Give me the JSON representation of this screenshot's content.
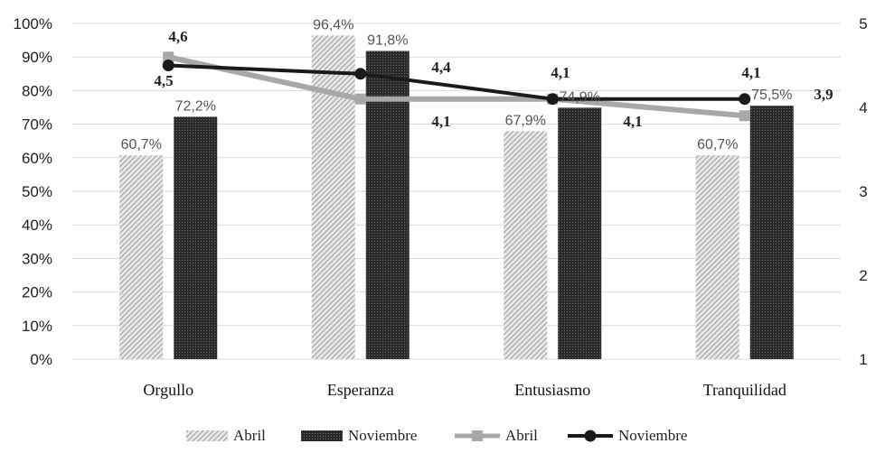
{
  "chart_data": {
    "type": "bar",
    "categories": [
      "Orgullo",
      "Esperanza",
      "Entusiasmo",
      "Tranquilidad"
    ],
    "bar_series": [
      {
        "name": "Abril",
        "values": [
          60.7,
          96.4,
          67.9,
          60.7
        ],
        "labels": [
          "60,7%",
          "96,4%",
          "67,9%",
          "60,7%"
        ],
        "color": "#cfcfcf",
        "pattern": "diagonal-hatch"
      },
      {
        "name": "Noviembre",
        "values": [
          72.2,
          91.8,
          74.9,
          75.5
        ],
        "labels": [
          "72,2%",
          "91,8%",
          "74,9%",
          "75,5%"
        ],
        "color": "#3a3a3a",
        "pattern": "dark-dots"
      }
    ],
    "line_series": [
      {
        "name": "Abril",
        "values": [
          4.6,
          4.1,
          4.1,
          3.9
        ],
        "labels": [
          "4,6",
          "4,1",
          "4,1",
          "3,9"
        ],
        "color": "#a8a8a8",
        "marker": "square"
      },
      {
        "name": "Noviembre",
        "values": [
          4.5,
          4.4,
          4.1,
          4.1
        ],
        "labels": [
          "4,5",
          "4,4",
          "4,1",
          "4,1"
        ],
        "color": "#1a1a1a",
        "marker": "circle"
      }
    ],
    "y_left": {
      "ylim": [
        0,
        100
      ],
      "ticks": [
        "0%",
        "10%",
        "20%",
        "30%",
        "40%",
        "50%",
        "60%",
        "70%",
        "80%",
        "90%",
        "100%"
      ]
    },
    "y_right": {
      "ylim": [
        1,
        5
      ],
      "ticks": [
        "1",
        "2",
        "3",
        "4",
        "5"
      ]
    },
    "grid": true,
    "legend_position": "bottom"
  }
}
